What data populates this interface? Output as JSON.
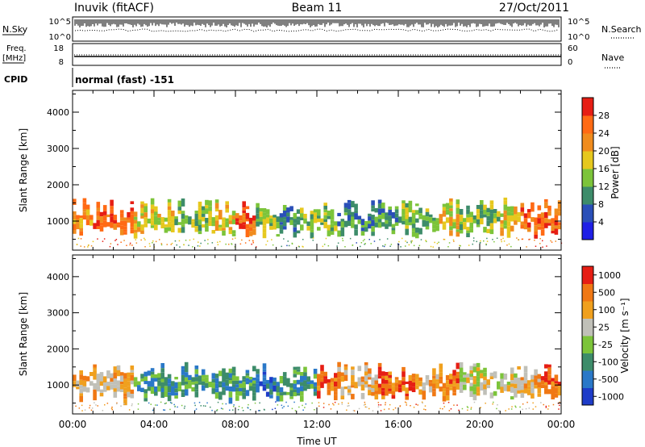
{
  "header": {
    "station": "Inuvik (fitACF)",
    "beam": "Beam 11",
    "date": "27/Oct/2011"
  },
  "panels": {
    "nsky": {
      "label": "N.Sky",
      "ytick_top": "10^5",
      "ytick_bottom": "10^0"
    },
    "nsearch": {
      "label": "N.Search",
      "ytick_top": "10^5",
      "ytick_bottom": "10^0",
      "line_style": "dotted"
    },
    "freq": {
      "label_line1": "Freq.",
      "label_line2": "[MHz]",
      "ytick_top": "18",
      "ytick_bottom": "8"
    },
    "nave": {
      "label": "Nave",
      "ytick_top": "60",
      "ytick_bottom": "0",
      "line_style": "dotted"
    },
    "cpid": {
      "label": "CPID",
      "value": "normal (fast) -151"
    }
  },
  "chart_data": [
    {
      "type": "heatmap",
      "name": "power",
      "ylabel": "Slant Range [km]",
      "ylim": [
        200,
        4600
      ],
      "yticks": [
        "1000",
        "2000",
        "3000",
        "4000"
      ],
      "colorbar": {
        "label": "Power [dB]",
        "tick_labels": [
          "4",
          "8",
          "12",
          "16",
          "20",
          "24",
          "28"
        ],
        "colors": [
          "#1f1fe6",
          "#2a4fb8",
          "#3d8c6a",
          "#7cc43a",
          "#e6c81e",
          "#f08c1e",
          "#ff6a14",
          "#e61e14"
        ]
      },
      "echo_band_km": [
        300,
        1650
      ],
      "dominant_class_by_hour": [
        5,
        6,
        6,
        4,
        4,
        3,
        3,
        4,
        6,
        3,
        2,
        3,
        3,
        2,
        2,
        2,
        3,
        3,
        4,
        3,
        3,
        4,
        6,
        6
      ]
    },
    {
      "type": "heatmap",
      "name": "velocity",
      "ylabel": "Slant Range [km]",
      "xlabel": "Time UT",
      "ylim": [
        200,
        4600
      ],
      "yticks": [
        "1000",
        "2000",
        "3000",
        "4000"
      ],
      "xticks": [
        "00:00",
        "04:00",
        "08:00",
        "12:00",
        "16:00",
        "20:00",
        "00:00"
      ],
      "colorbar": {
        "label": "Velocity [m s⁻¹]",
        "tick_labels": [
          "1000",
          "500",
          "100",
          "25",
          "-25",
          "-100",
          "-500",
          "-1000"
        ],
        "colors": [
          "#1e3cc8",
          "#2a78c8",
          "#3d8c6a",
          "#7cc43a",
          "#c0c0b8",
          "#f0a01e",
          "#f07814",
          "#e61e14"
        ]
      },
      "echo_band_km": [
        300,
        1650
      ],
      "dominant_class_by_hour": [
        5,
        5,
        5,
        2,
        2,
        2,
        2,
        2,
        2,
        1,
        2,
        2,
        6,
        5,
        5,
        6,
        6,
        5,
        6,
        4,
        4,
        4,
        5,
        6
      ]
    }
  ]
}
